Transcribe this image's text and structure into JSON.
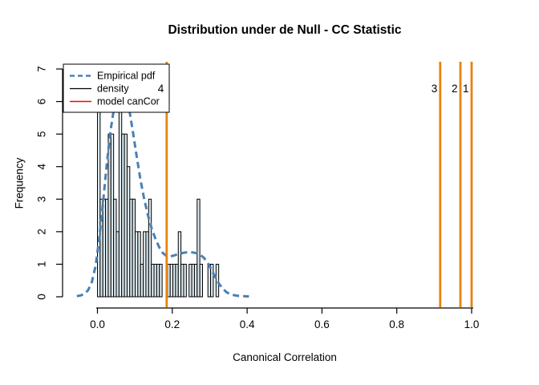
{
  "chart_data": {
    "type": "histogram",
    "title": "Distribution under de Null - CC Statistic",
    "xlabel": "Canonical Correlation",
    "ylabel": "Frequency",
    "xlim": [
      -0.06,
      1.04
    ],
    "ylim": [
      0,
      7.36
    ],
    "grid": false,
    "x_ticks": [
      0.0,
      0.2,
      0.4,
      0.6,
      0.8,
      1.0
    ],
    "x_tick_labels": [
      "0.0",
      "0.2",
      "0.4",
      "0.6",
      "0.8",
      "1.0"
    ],
    "y_ticks": [
      0,
      1,
      2,
      3,
      4,
      5,
      6,
      7
    ],
    "y_tick_labels": [
      "0",
      "1",
      "2",
      "3",
      "4",
      "5",
      "6",
      "7"
    ],
    "histogram": {
      "bin_start": 0.0,
      "bin_width": 0.0072,
      "counts": [
        6,
        3,
        3,
        3,
        5,
        5,
        3,
        2,
        6,
        5,
        5,
        4,
        3,
        3,
        2,
        2,
        1,
        2,
        2,
        3,
        1,
        1,
        1,
        1,
        0,
        0,
        1,
        1,
        1,
        1,
        2,
        1,
        1,
        0,
        1,
        1,
        1,
        3,
        1,
        0,
        0,
        1,
        1,
        0,
        1,
        0
      ],
      "bar_fill": "#DCE9EF",
      "bar_stroke": "#000000"
    },
    "density_curve": {
      "legend_label": "Empirical pdf",
      "color": "#4A80B4",
      "line_style": "dashed",
      "points": [
        [
          -0.055,
          0.02
        ],
        [
          -0.045,
          0.04
        ],
        [
          -0.035,
          0.09
        ],
        [
          -0.025,
          0.2
        ],
        [
          -0.015,
          0.45
        ],
        [
          -0.005,
          0.95
        ],
        [
          0.005,
          1.8
        ],
        [
          0.015,
          2.9
        ],
        [
          0.025,
          4.1
        ],
        [
          0.035,
          5.1
        ],
        [
          0.045,
          5.85
        ],
        [
          0.055,
          6.25
        ],
        [
          0.065,
          6.35
        ],
        [
          0.075,
          6.2
        ],
        [
          0.085,
          5.75
        ],
        [
          0.095,
          5.05
        ],
        [
          0.105,
          4.3
        ],
        [
          0.115,
          3.6
        ],
        [
          0.125,
          3.0
        ],
        [
          0.135,
          2.5
        ],
        [
          0.145,
          2.1
        ],
        [
          0.155,
          1.78
        ],
        [
          0.165,
          1.52
        ],
        [
          0.175,
          1.34
        ],
        [
          0.185,
          1.25
        ],
        [
          0.195,
          1.24
        ],
        [
          0.205,
          1.27
        ],
        [
          0.215,
          1.31
        ],
        [
          0.225,
          1.34
        ],
        [
          0.235,
          1.36
        ],
        [
          0.245,
          1.37
        ],
        [
          0.255,
          1.36
        ],
        [
          0.265,
          1.34
        ],
        [
          0.275,
          1.29
        ],
        [
          0.285,
          1.19
        ],
        [
          0.295,
          1.03
        ],
        [
          0.305,
          0.83
        ],
        [
          0.315,
          0.6
        ],
        [
          0.325,
          0.4
        ],
        [
          0.335,
          0.25
        ],
        [
          0.345,
          0.14
        ],
        [
          0.355,
          0.08
        ],
        [
          0.365,
          0.05
        ],
        [
          0.375,
          0.03
        ],
        [
          0.385,
          0.02
        ],
        [
          0.395,
          0.015
        ],
        [
          0.405,
          0.01
        ]
      ]
    },
    "vlines": {
      "color": "#E8820E",
      "items": [
        {
          "x": 0.185,
          "label": "4"
        },
        {
          "x": 0.916,
          "label": "3"
        },
        {
          "x": 0.97,
          "label": "2"
        },
        {
          "x": 1.0,
          "label": "1"
        }
      ]
    },
    "legend": {
      "position": "topleft",
      "entries": [
        {
          "label": "Empirical pdf",
          "color": "#4A80B4",
          "dash": true,
          "width": 2.6
        },
        {
          "label": "density",
          "color": "#000000",
          "dash": false,
          "width": 1.3
        },
        {
          "label": "model canCor",
          "color": "#FF0000",
          "dash": false,
          "width": 1.5
        }
      ]
    }
  }
}
